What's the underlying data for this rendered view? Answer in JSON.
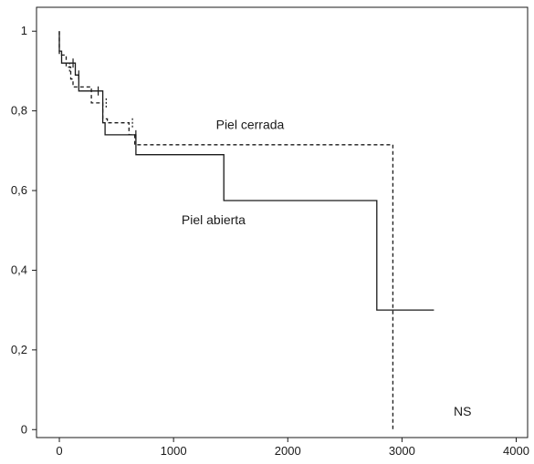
{
  "chart_data": {
    "type": "line",
    "title": "",
    "xlabel": "",
    "ylabel": "",
    "xlim": [
      -200,
      4100
    ],
    "ylim": [
      -0.02,
      1.06
    ],
    "xticks": [
      0,
      1000,
      2000,
      3000,
      4000
    ],
    "xtick_labels": [
      "0",
      "1000",
      "2000",
      "3000",
      "4000"
    ],
    "yticks": [
      0,
      0.2,
      0.4,
      0.6,
      0.8,
      1
    ],
    "ytick_labels": [
      "0",
      "0,2",
      "0,4",
      "0,6",
      "0,8",
      "1"
    ],
    "grid": false,
    "series": [
      {
        "name": "Piel abierta",
        "style": "solid",
        "color": "#1a1a1a",
        "points": [
          [
            0,
            1.0
          ],
          [
            0,
            0.95
          ],
          [
            20,
            0.95
          ],
          [
            20,
            0.92
          ],
          [
            140,
            0.92
          ],
          [
            140,
            0.89
          ],
          [
            170,
            0.89
          ],
          [
            170,
            0.85
          ],
          [
            380,
            0.85
          ],
          [
            380,
            0.77
          ],
          [
            400,
            0.77
          ],
          [
            400,
            0.74
          ],
          [
            670,
            0.74
          ],
          [
            670,
            0.69
          ],
          [
            1440,
            0.69
          ],
          [
            1440,
            0.575
          ],
          [
            2780,
            0.575
          ],
          [
            2780,
            0.3
          ],
          [
            3280,
            0.3
          ]
        ],
        "censor_marks": [
          [
            120,
            0.92
          ],
          [
            170,
            0.89
          ],
          [
            340,
            0.85
          ],
          [
            670,
            0.74
          ]
        ]
      },
      {
        "name": "Piel cerrada",
        "style": "dashed",
        "color": "#1a1a1a",
        "points": [
          [
            0,
            1.0
          ],
          [
            0,
            0.94
          ],
          [
            60,
            0.94
          ],
          [
            60,
            0.91
          ],
          [
            100,
            0.91
          ],
          [
            100,
            0.88
          ],
          [
            120,
            0.88
          ],
          [
            120,
            0.86
          ],
          [
            280,
            0.86
          ],
          [
            280,
            0.82
          ],
          [
            380,
            0.82
          ],
          [
            380,
            0.78
          ],
          [
            420,
            0.78
          ],
          [
            420,
            0.77
          ],
          [
            610,
            0.77
          ],
          [
            610,
            0.74
          ],
          [
            660,
            0.74
          ],
          [
            660,
            0.715
          ],
          [
            2920,
            0.715
          ],
          [
            2920,
            0.0
          ]
        ],
        "censor_marks": [
          [
            90,
            0.91
          ],
          [
            410,
            0.82
          ],
          [
            640,
            0.77
          ]
        ]
      }
    ],
    "annotations": [
      {
        "text": "Piel cerrada",
        "x": 1670,
        "y": 0.755
      },
      {
        "text": "Piel abierta",
        "x": 1350,
        "y": 0.515
      },
      {
        "text": "NS",
        "x": 3530,
        "y": 0.035
      }
    ]
  }
}
